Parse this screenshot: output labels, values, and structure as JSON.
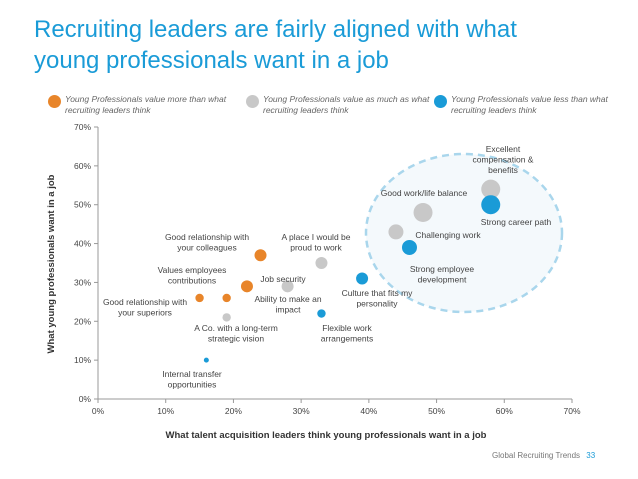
{
  "title_line1": "Recruiting leaders are fairly aligned with what",
  "title_line2": "young professionals want in a job",
  "legend": [
    {
      "color": "#e8852a",
      "text": "Young Professionals value more than what recruiting leaders think"
    },
    {
      "color": "#c8c8c8",
      "text": "Young Professionals value as much as what recruiting leaders think"
    },
    {
      "color": "#1a9bd7",
      "text": "Young Professionals value less than what recruiting leaders think"
    }
  ],
  "footer": {
    "source": "Global Recruiting Trends",
    "page": "33"
  },
  "chart_data": {
    "type": "scatter",
    "xlabel": "What talent acquisition leaders think young professionals want in a job",
    "ylabel": "What young professionals want in a job",
    "xlim": [
      0,
      70
    ],
    "ylim": [
      0,
      70
    ],
    "xticks": [
      "0%",
      "10%",
      "20%",
      "30%",
      "40%",
      "50%",
      "60%",
      "70%"
    ],
    "yticks": [
      "0%",
      "10%",
      "20%",
      "30%",
      "40%",
      "50%",
      "60%",
      "70%"
    ],
    "grid": false,
    "points": [
      {
        "label": "Excellent compensation & benefits",
        "x": 58,
        "y": 54,
        "category": "same",
        "size": "large"
      },
      {
        "label": "Strong career path",
        "x": 58,
        "y": 50,
        "category": "less",
        "size": "large"
      },
      {
        "label": "Good work/life balance",
        "x": 48,
        "y": 48,
        "category": "same",
        "size": "large"
      },
      {
        "label": "Challenging work",
        "x": 44,
        "y": 43,
        "category": "same",
        "size": "medium"
      },
      {
        "label": "Strong employee development",
        "x": 46,
        "y": 39,
        "category": "less",
        "size": "medium"
      },
      {
        "label": "Good relationship with your colleagues",
        "x": 24,
        "y": 37,
        "category": "more",
        "size": "small"
      },
      {
        "label": "A place I would be proud to work",
        "x": 33,
        "y": 35,
        "category": "same",
        "size": "small"
      },
      {
        "label": "Culture that fits my personality",
        "x": 39,
        "y": 31,
        "category": "less",
        "size": "small"
      },
      {
        "label": "Job security",
        "x": 22,
        "y": 29,
        "category": "more",
        "size": "small"
      },
      {
        "label": "Ability to make an impact",
        "x": 28,
        "y": 29,
        "category": "same",
        "size": "small"
      },
      {
        "label": "Values employees contributions",
        "x": 19,
        "y": 26,
        "category": "more",
        "size": "xsmall"
      },
      {
        "label": "Good relationship with your superiors",
        "x": 15,
        "y": 26,
        "category": "more",
        "size": "xsmall"
      },
      {
        "label": "A Co. with a long-term strategic vision",
        "x": 19,
        "y": 21,
        "category": "same",
        "size": "xsmall"
      },
      {
        "label": "Flexible work arrangements",
        "x": 33,
        "y": 22,
        "category": "less",
        "size": "xsmall"
      },
      {
        "label": "Internal transfer opportunities",
        "x": 16,
        "y": 10,
        "category": "less",
        "size": "tiny"
      }
    ]
  }
}
